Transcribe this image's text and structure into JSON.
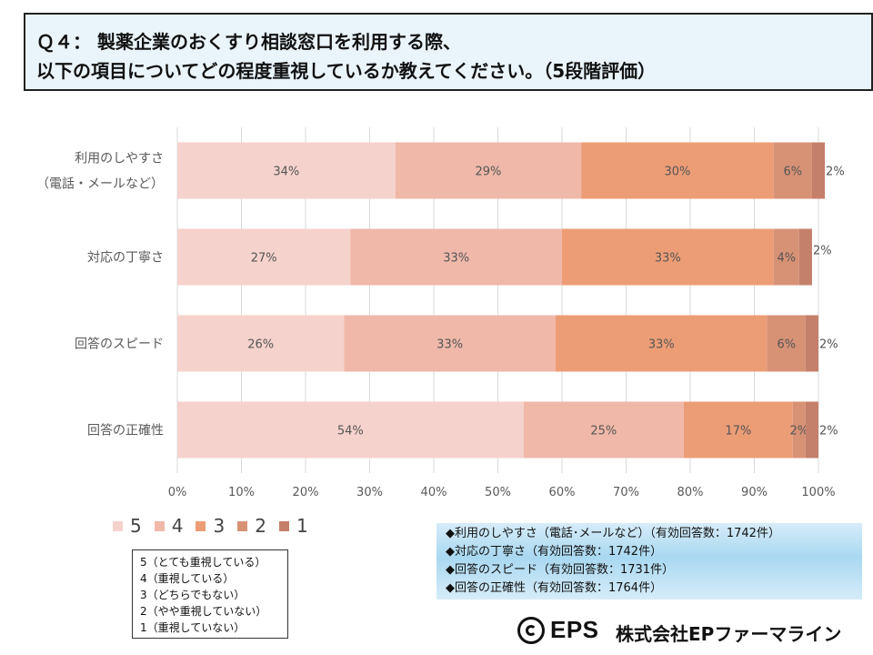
{
  "title": {
    "line1": "Ｑ４： 製薬企業のおくすり相談窓口を利用する際、",
    "line2": "以下の項目についてどの程度重視しているか教えてください。（5段階評価）"
  },
  "chart_data": {
    "type": "bar",
    "orientation": "horizontal-stacked-100",
    "categories": [
      [
        "利用のしやすさ",
        "（電話・メールなど）"
      ],
      [
        "対応の丁寧さ"
      ],
      [
        "回答のスピード"
      ],
      [
        "回答の正確性"
      ]
    ],
    "series": [
      {
        "name": "5",
        "color": "#f6d2cc",
        "values": [
          34,
          27,
          26,
          54
        ],
        "labels": [
          "34%",
          "27%",
          "26%",
          "54%"
        ]
      },
      {
        "name": "4",
        "color": "#efb8a9",
        "values": [
          29,
          33,
          33,
          25
        ],
        "labels": [
          "29%",
          "33%",
          "33%",
          "25%"
        ]
      },
      {
        "name": "3",
        "color": "#ec9d76",
        "values": [
          30,
          33,
          33,
          17
        ],
        "labels": [
          "30%",
          "33%",
          "33%",
          "17%"
        ]
      },
      {
        "name": "2",
        "color": "#d79276",
        "values": [
          6,
          4,
          6,
          2
        ],
        "labels": [
          "6%",
          "4%",
          "6%",
          "2%"
        ]
      },
      {
        "name": "1",
        "color": "#c4806a",
        "values": [
          2,
          2,
          2,
          2
        ],
        "labels": [
          "2%",
          "2%",
          "2%",
          "2%"
        ]
      }
    ],
    "xlim": [
      0,
      100
    ],
    "xticks": [
      "0%",
      "10%",
      "20%",
      "30%",
      "40%",
      "50%",
      "60%",
      "70%",
      "80%",
      "90%",
      "100%"
    ],
    "grid": true,
    "legend_position": "bottom-left"
  },
  "scale_legend": [
    "5（とても重視している）",
    "4（重視している）",
    "3（どちらでもない）",
    "2（やや重視していない）",
    "1（重視していない）"
  ],
  "response_counts": [
    "◆利用のしやすさ（電話･メールなど）（有効回答数：1742件）",
    "◆対応の丁寧さ（有効回答数：1742件）",
    "◆回答のスピード（有効回答数：1731件）",
    "◆回答の正確性（有効回答数：1764件）"
  ],
  "footer": {
    "logo_text": "EPS",
    "company_name": "株式会社EPファーマライン"
  }
}
